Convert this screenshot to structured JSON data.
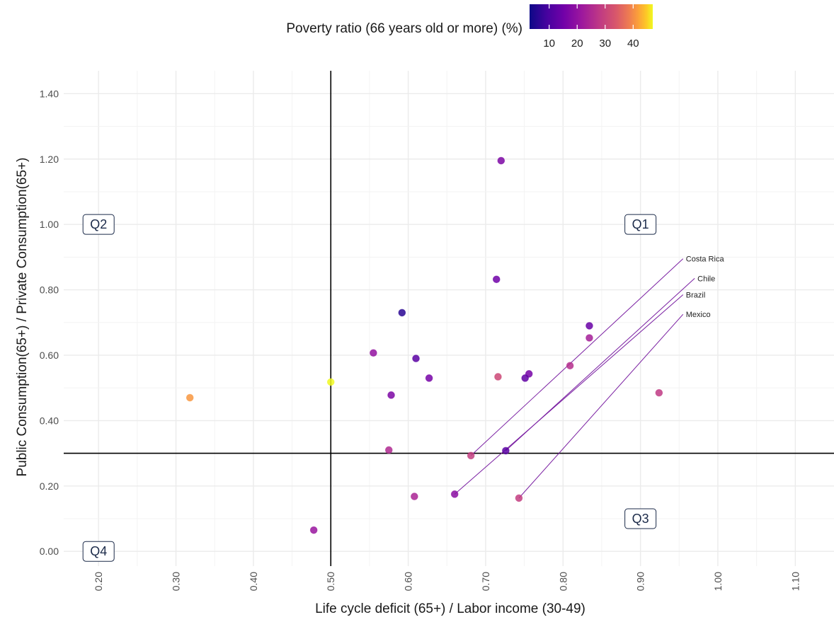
{
  "chart_data": {
    "type": "scatter",
    "xlabel": "Life cycle deficit (65+) / Labor income (30-49)",
    "ylabel": "Public Consumption(65+) / Private Consumption(65+)",
    "xlim": [
      0.155,
      1.15
    ],
    "ylim": [
      -0.045,
      1.47
    ],
    "x_ticks": [
      "0.20",
      "0.30",
      "0.40",
      "0.50",
      "0.60",
      "0.70",
      "0.80",
      "0.90",
      "1.00",
      "1.10"
    ],
    "y_ticks": [
      "0.00",
      "0.20",
      "0.40",
      "0.60",
      "0.80",
      "1.00",
      "1.20",
      "1.40"
    ],
    "grid": true,
    "reference_lines": {
      "x": 0.5,
      "y": 0.3
    },
    "color_scale": {
      "title": "Poverty ratio (66 years old or more) (%)",
      "palette": "plasma",
      "min": 3,
      "max": 47,
      "ticks": [
        "10",
        "20",
        "30",
        "40"
      ],
      "placement": "top"
    },
    "quadrant_labels": [
      {
        "text": "Q1",
        "x": 0.9,
        "y": 1.0
      },
      {
        "text": "Q2",
        "x": 0.2,
        "y": 1.0
      },
      {
        "text": "Q3",
        "x": 0.9,
        "y": 0.1
      },
      {
        "text": "Q4",
        "x": 0.2,
        "y": 0.0
      }
    ],
    "points": [
      {
        "x": 0.72,
        "y": 1.195,
        "poverty": 17
      },
      {
        "x": 0.714,
        "y": 0.832,
        "poverty": 15
      },
      {
        "x": 0.592,
        "y": 0.73,
        "poverty": 6
      },
      {
        "x": 0.834,
        "y": 0.69,
        "poverty": 14
      },
      {
        "x": 0.834,
        "y": 0.653,
        "poverty": 23
      },
      {
        "x": 0.555,
        "y": 0.607,
        "poverty": 20
      },
      {
        "x": 0.61,
        "y": 0.59,
        "poverty": 12
      },
      {
        "x": 0.809,
        "y": 0.568,
        "poverty": 26
      },
      {
        "x": 0.756,
        "y": 0.543,
        "poverty": 16
      },
      {
        "x": 0.716,
        "y": 0.534,
        "poverty": 31
      },
      {
        "x": 0.751,
        "y": 0.53,
        "poverty": 13
      },
      {
        "x": 0.627,
        "y": 0.53,
        "poverty": 16
      },
      {
        "x": 0.5,
        "y": 0.518,
        "poverty": 47
      },
      {
        "x": 0.924,
        "y": 0.485,
        "poverty": 28
      },
      {
        "x": 0.578,
        "y": 0.478,
        "poverty": 17
      },
      {
        "x": 0.318,
        "y": 0.47,
        "poverty": 41
      },
      {
        "x": 0.575,
        "y": 0.31,
        "poverty": 25
      },
      {
        "x": 0.726,
        "y": 0.308,
        "poverty": 12
      },
      {
        "x": 0.681,
        "y": 0.293,
        "poverty": 29
      },
      {
        "x": 0.66,
        "y": 0.175,
        "poverty": 19
      },
      {
        "x": 0.608,
        "y": 0.168,
        "poverty": 24
      },
      {
        "x": 0.743,
        "y": 0.163,
        "poverty": 29
      },
      {
        "x": 0.478,
        "y": 0.065,
        "poverty": 21
      }
    ],
    "annotations": [
      {
        "text": "Costa Rica",
        "x": 0.955,
        "y": 0.895,
        "from_x": 0.681,
        "from_y": 0.293
      },
      {
        "text": "Chile",
        "x": 0.97,
        "y": 0.835,
        "from_x": 0.726,
        "from_y": 0.308
      },
      {
        "text": "Brazil",
        "x": 0.955,
        "y": 0.785,
        "from_x": 0.66,
        "from_y": 0.175
      },
      {
        "text": "Mexico",
        "x": 0.955,
        "y": 0.725,
        "from_x": 0.743,
        "from_y": 0.163
      }
    ]
  }
}
